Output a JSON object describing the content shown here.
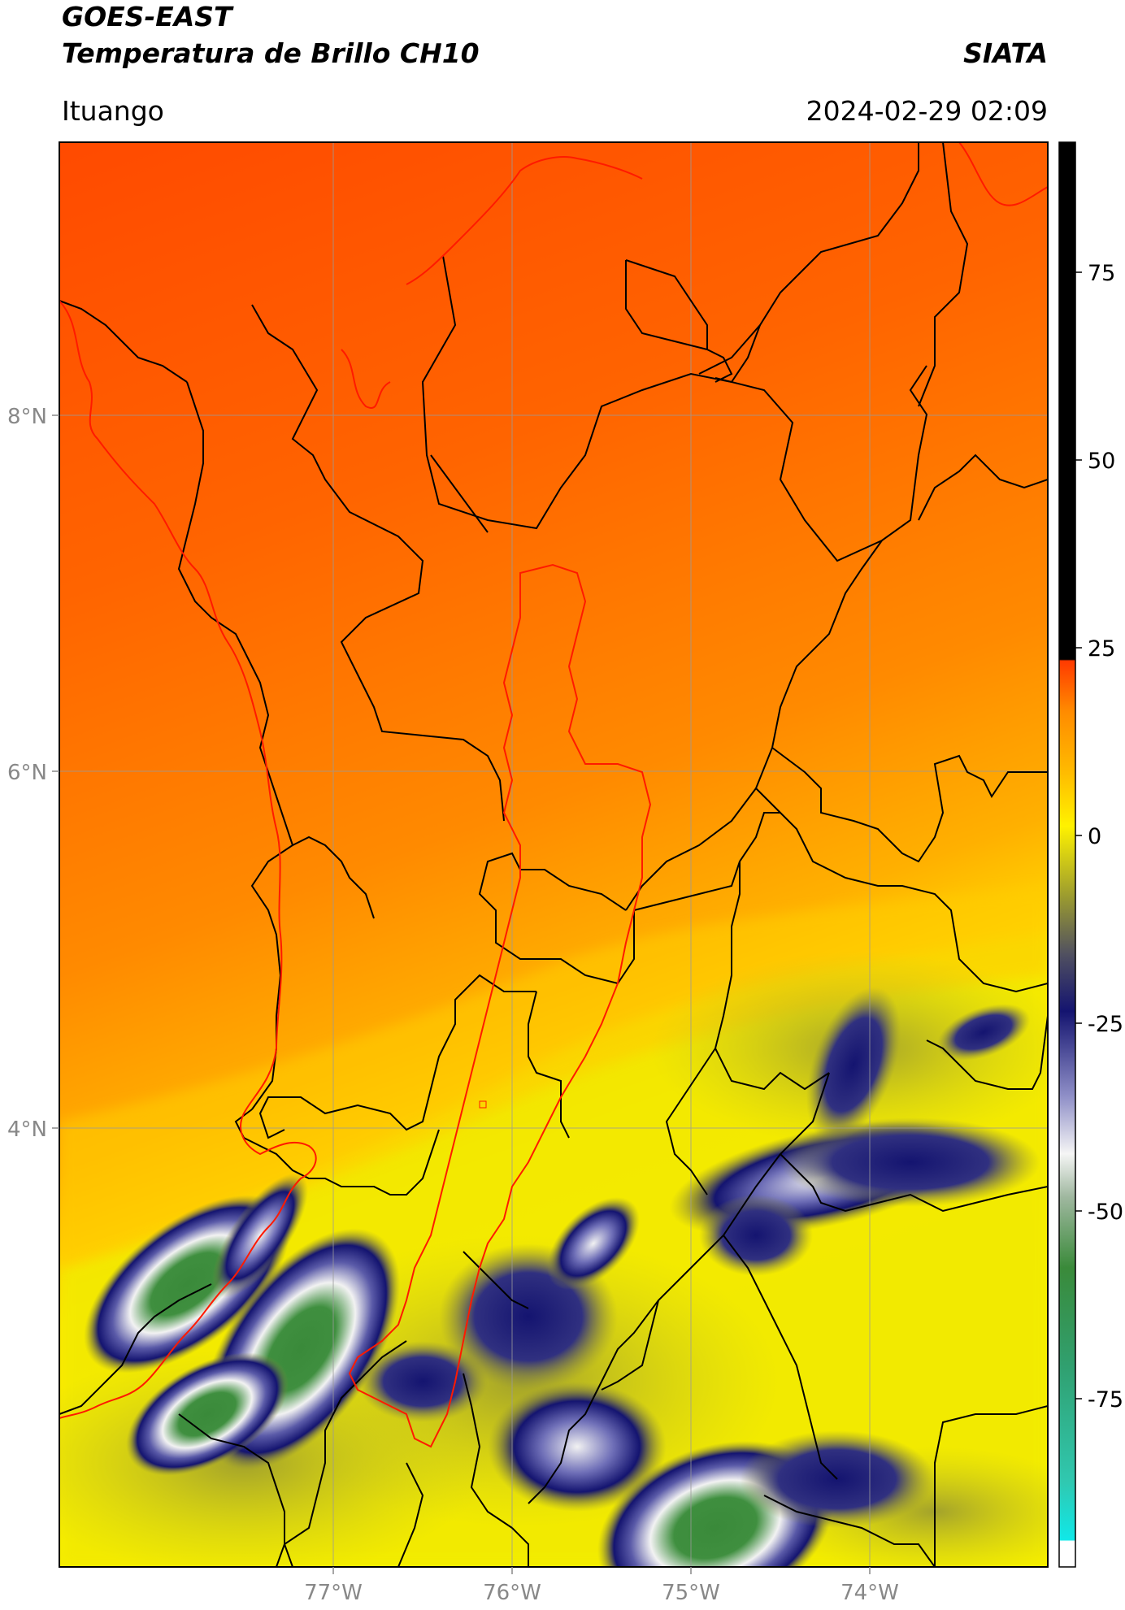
{
  "header": {
    "satellite": "GOES-EAST",
    "product": "Temperatura de Brillo CH10",
    "agency": "SIATA",
    "region": "Ituango",
    "datetime": "2024-02-29 02:09"
  },
  "map": {
    "lat_ticks": [
      "8°N",
      "6°N",
      "4°N"
    ],
    "lon_ticks": [
      "77°W",
      "76°W",
      "75°W",
      "74°W"
    ]
  },
  "colorbar": {
    "ticks": [
      "75",
      "50",
      "25",
      "0",
      "-25",
      "-50",
      "-75"
    ],
    "colors": {
      "black": "#000000",
      "red": "#ff1a00",
      "orange": "#ff8c00",
      "yellow": "#fff200",
      "olive": "#8f8f3a",
      "navy": "#141470",
      "white": "#f2f2f2",
      "green": "#3a8a3a",
      "cyan": "#1ee0e0"
    }
  }
}
